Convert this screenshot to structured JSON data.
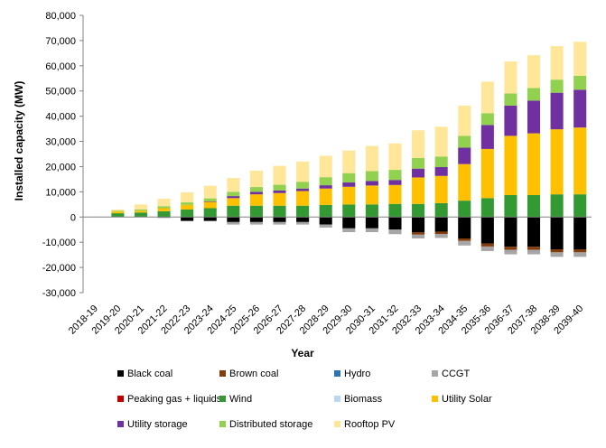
{
  "chart_data": {
    "type": "bar",
    "stacked": true,
    "title": "",
    "xlabel": "Year",
    "ylabel": "Installed capacity (MW)",
    "ylim": [
      -30000,
      80000
    ],
    "yticks": [
      -30000,
      -20000,
      -10000,
      0,
      10000,
      20000,
      30000,
      40000,
      50000,
      60000,
      70000,
      80000
    ],
    "ytick_labels": [
      "-30,000",
      "-20,000",
      "-10,000",
      "0",
      "10,000",
      "20,000",
      "30,000",
      "40,000",
      "50,000",
      "60,000",
      "70,000",
      "80,000"
    ],
    "grid": false,
    "legend_position": "bottom",
    "categories": [
      "2018-19",
      "2019-20",
      "2020-21",
      "2021-22",
      "2022-23",
      "2023-24",
      "2024-25",
      "2025-26",
      "2026-27",
      "2027-28",
      "2028-29",
      "2029-30",
      "2030-31",
      "2031-32",
      "2032-33",
      "2033-34",
      "2034-35",
      "2035-36",
      "2036-37",
      "2037-38",
      "2038-39",
      "2039-40"
    ],
    "series": [
      {
        "name": "Black coal",
        "color": "#000000",
        "values": [
          0,
          0,
          0,
          -200,
          -1500,
          -1500,
          -2000,
          -2000,
          -2000,
          -2000,
          -3000,
          -4500,
          -4500,
          -5000,
          -6000,
          -5800,
          -8500,
          -10500,
          -11800,
          -11800,
          -12800,
          -12800
        ]
      },
      {
        "name": "Brown coal",
        "color": "#843c0c",
        "values": [
          0,
          0,
          0,
          0,
          0,
          0,
          0,
          0,
          0,
          0,
          0,
          0,
          0,
          0,
          -1000,
          -1000,
          -1000,
          -1200,
          -1200,
          -1200,
          -1200,
          -1200
        ]
      },
      {
        "name": "Hydro",
        "color": "#2e75b6",
        "values": [
          0,
          0,
          0,
          0,
          0,
          0,
          0,
          0,
          0,
          0,
          0,
          0,
          0,
          0,
          0,
          0,
          0,
          0,
          0,
          0,
          0,
          0
        ]
      },
      {
        "name": "CCGT",
        "color": "#a6a6a6",
        "values": [
          0,
          0,
          0,
          -200,
          -200,
          -200,
          -1000,
          -1000,
          -1000,
          -1000,
          -1200,
          -1500,
          -1500,
          -1800,
          -1500,
          -1500,
          -1800,
          -1800,
          -1800,
          -1800,
          -1800,
          -1800
        ]
      },
      {
        "name": "Peaking gas + liquids",
        "color": "#c00000",
        "values": [
          0,
          0,
          0,
          0,
          0,
          0,
          0,
          0,
          0,
          0,
          0,
          0,
          0,
          0,
          0,
          0,
          0,
          0,
          0,
          0,
          0,
          0
        ]
      },
      {
        "name": "Wind",
        "color": "#339933",
        "values": [
          0,
          1500,
          1800,
          2300,
          3000,
          3500,
          4500,
          4500,
          4500,
          4500,
          4800,
          5000,
          5000,
          5200,
          5200,
          5500,
          6500,
          7500,
          8700,
          8700,
          9000,
          9000
        ]
      },
      {
        "name": "Biomass",
        "color": "#bdd7ee",
        "values": [
          0,
          0,
          0,
          0,
          0,
          0,
          0,
          0,
          0,
          0,
          0,
          0,
          0,
          0,
          0,
          0,
          0,
          0,
          0,
          0,
          0,
          0
        ]
      },
      {
        "name": "Utility Solar",
        "color": "#ffc000",
        "values": [
          0,
          700,
          700,
          1200,
          1800,
          2500,
          3000,
          4500,
          5000,
          5800,
          6500,
          7000,
          7500,
          7500,
          10500,
          10800,
          14500,
          19500,
          23500,
          24500,
          25800,
          26500
        ]
      },
      {
        "name": "Utility storage",
        "color": "#7030a0",
        "values": [
          0,
          0,
          0,
          0,
          0,
          200,
          800,
          1000,
          1000,
          1000,
          1300,
          1700,
          1800,
          2000,
          3500,
          3500,
          6500,
          9500,
          12000,
          13000,
          14500,
          15000
        ]
      },
      {
        "name": "Distributed storage",
        "color": "#92d050",
        "values": [
          0,
          300,
          500,
          800,
          1000,
          1200,
          1700,
          1900,
          2300,
          2700,
          3200,
          3700,
          3900,
          4000,
          4200,
          4200,
          4700,
          4700,
          4800,
          5000,
          5200,
          5500
        ]
      },
      {
        "name": "Rooftop PV",
        "color": "#ffe699",
        "values": [
          0,
          500,
          2000,
          3000,
          4000,
          5000,
          5500,
          6500,
          7500,
          8000,
          8500,
          9000,
          10000,
          10500,
          11000,
          11800,
          12000,
          12500,
          12700,
          13000,
          13300,
          13500
        ]
      }
    ]
  }
}
